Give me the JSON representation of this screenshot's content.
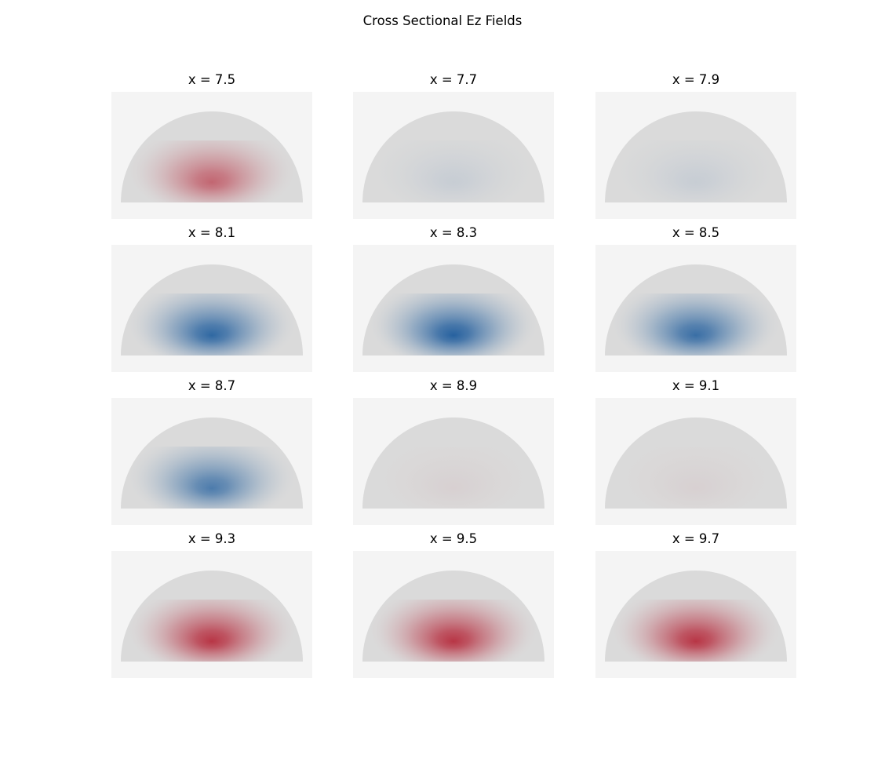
{
  "figure": {
    "title": "Cross Sectional Ez Fields"
  },
  "chart_data": {
    "type": "heatmap",
    "title": "Cross Sectional Ez Fields",
    "colormap": "diverging blue-white-red",
    "colors": {
      "panel_background": "#f4f4f4",
      "domain_fill": "#dadada",
      "negative_max": "#1c5b9c",
      "positive_max": "#b2182b"
    },
    "grid": false,
    "axes_visible": false,
    "panels": [
      {
        "title": "x = 7.5",
        "x": 7.5,
        "relative_field_peak": 0.6
      },
      {
        "title": "x = 7.7",
        "x": 7.7,
        "relative_field_peak": -0.1
      },
      {
        "title": "x = 7.9",
        "x": 7.9,
        "relative_field_peak": -0.1
      },
      {
        "title": "x = 8.1",
        "x": 8.1,
        "relative_field_peak": -0.9
      },
      {
        "title": "x = 8.3",
        "x": 8.3,
        "relative_field_peak": -0.95
      },
      {
        "title": "x = 8.5",
        "x": 8.5,
        "relative_field_peak": -0.85
      },
      {
        "title": "x = 8.7",
        "x": 8.7,
        "relative_field_peak": -0.75
      },
      {
        "title": "x = 8.9",
        "x": 8.9,
        "relative_field_peak": 0.05
      },
      {
        "title": "x = 9.1",
        "x": 9.1,
        "relative_field_peak": 0.05
      },
      {
        "title": "x = 9.3",
        "x": 9.3,
        "relative_field_peak": 0.85
      },
      {
        "title": "x = 9.5",
        "x": 9.5,
        "relative_field_peak": 0.85
      },
      {
        "title": "x = 9.7",
        "x": 9.7,
        "relative_field_peak": 0.85
      }
    ]
  }
}
